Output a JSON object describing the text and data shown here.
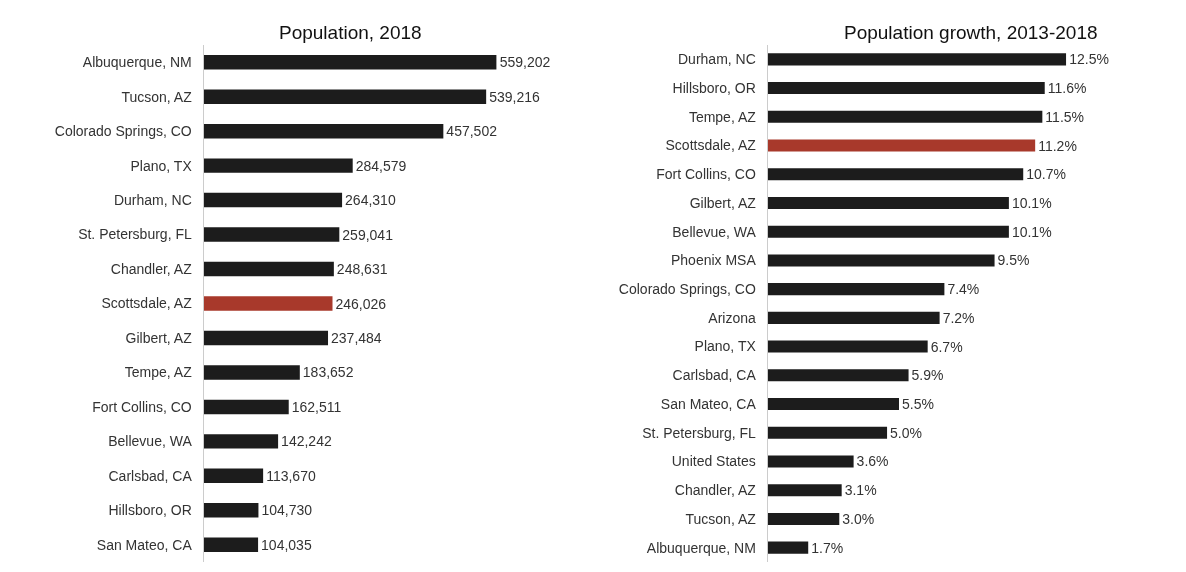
{
  "chart_data": [
    {
      "type": "bar",
      "orientation": "horizontal",
      "title": "Population, 2018",
      "categories": [
        "Albuquerque, NM",
        "Tucson, AZ",
        "Colorado Springs, CO",
        "Plano, TX",
        "Durham, NC",
        "St. Petersburg, FL",
        "Chandler, AZ",
        "Scottsdale, AZ",
        "Gilbert, AZ",
        "Tempe, AZ",
        "Fort Collins, CO",
        "Bellevue, WA",
        "Carlsbad, CA",
        "Hillsboro, OR",
        "San Mateo, CA"
      ],
      "values": [
        559202,
        539216,
        457502,
        284579,
        264310,
        259041,
        248631,
        246026,
        237484,
        183652,
        162511,
        142242,
        113670,
        104730,
        104035
      ],
      "value_labels": [
        "559,202",
        "539,216",
        "457,502",
        "284,579",
        "264,310",
        "259,041",
        "248,631",
        "246,026",
        "237,484",
        "183,652",
        "162,511",
        "142,242",
        "113,670",
        "104,730",
        "104,035"
      ],
      "colors": [
        "#1c1c1c",
        "#1c1c1c",
        "#1c1c1c",
        "#1c1c1c",
        "#1c1c1c",
        "#1c1c1c",
        "#1c1c1c",
        "#a8392b",
        "#1c1c1c",
        "#1c1c1c",
        "#1c1c1c",
        "#1c1c1c",
        "#1c1c1c",
        "#1c1c1c",
        "#1c1c1c"
      ]
    },
    {
      "type": "bar",
      "orientation": "horizontal",
      "title": "Population growth, 2013-2018",
      "categories": [
        "Durham, NC",
        "Hillsboro, OR",
        "Tempe, AZ",
        "Scottsdale, AZ",
        "Fort Collins, CO",
        "Gilbert, AZ",
        "Bellevue, WA",
        "Phoenix MSA",
        "Colorado Springs, CO",
        "Arizona",
        "Plano, TX",
        "Carlsbad, CA",
        "San Mateo, CA",
        "St. Petersburg, FL",
        "United States",
        "Chandler, AZ",
        "Tucson, AZ",
        "Albuquerque, NM"
      ],
      "values": [
        12.5,
        11.6,
        11.5,
        11.2,
        10.7,
        10.1,
        10.1,
        9.5,
        7.4,
        7.2,
        6.7,
        5.9,
        5.5,
        5.0,
        3.6,
        3.1,
        3.0,
        1.7
      ],
      "value_labels": [
        "12.5%",
        "11.6%",
        "11.5%",
        "11.2%",
        "10.7%",
        "10.1%",
        "10.1%",
        "9.5%",
        "7.4%",
        "7.2%",
        "6.7%",
        "5.9%",
        "5.5%",
        "5.0%",
        "3.6%",
        "3.1%",
        "3.0%",
        "1.7%"
      ],
      "colors": [
        "#1c1c1c",
        "#1c1c1c",
        "#1c1c1c",
        "#a8392b",
        "#1c1c1c",
        "#1c1c1c",
        "#1c1c1c",
        "#1c1c1c",
        "#1c1c1c",
        "#1c1c1c",
        "#1c1c1c",
        "#1c1c1c",
        "#1c1c1c",
        "#1c1c1c",
        "#1c1c1c",
        "#1c1c1c",
        "#1c1c1c",
        "#1c1c1c"
      ]
    }
  ]
}
